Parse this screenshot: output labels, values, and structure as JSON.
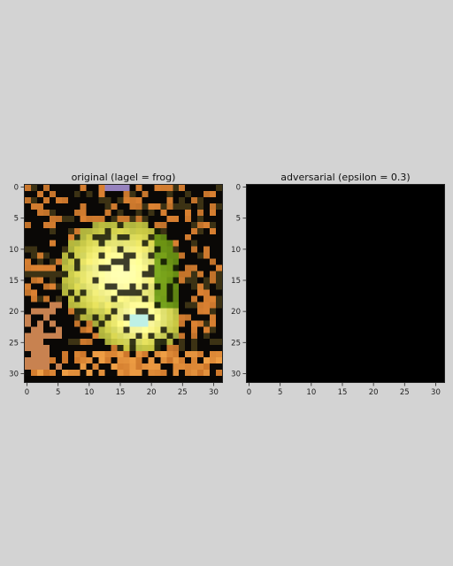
{
  "figure": {
    "panels": [
      {
        "name": "original",
        "title": "original (lagel = frog)",
        "content": "frog-image"
      },
      {
        "name": "adversarial",
        "title": "adversarial (epsilon = 0.3)",
        "content": "black-image",
        "fill_color": "#000000"
      }
    ]
  },
  "chart_data": [
    {
      "type": "heatmap",
      "title": "original (lagel = frog)",
      "xlabel": "",
      "ylabel": "",
      "xlim": [
        -0.5,
        31.5
      ],
      "ylim": [
        31.5,
        -0.5
      ],
      "xticks": [
        0,
        5,
        10,
        15,
        20,
        25,
        30
      ],
      "yticks": [
        0,
        5,
        10,
        15,
        20,
        25,
        30
      ],
      "grid": false
    },
    {
      "type": "heatmap",
      "title": "adversarial (epsilon = 0.3)",
      "xlabel": "",
      "ylabel": "",
      "xlim": [
        -0.5,
        31.5
      ],
      "ylim": [
        31.5,
        -0.5
      ],
      "xticks": [
        0,
        5,
        10,
        15,
        20,
        25,
        30
      ],
      "yticks": [
        0,
        5,
        10,
        15,
        20,
        25,
        30
      ],
      "grid": false,
      "uniform_color": "#000000"
    }
  ]
}
